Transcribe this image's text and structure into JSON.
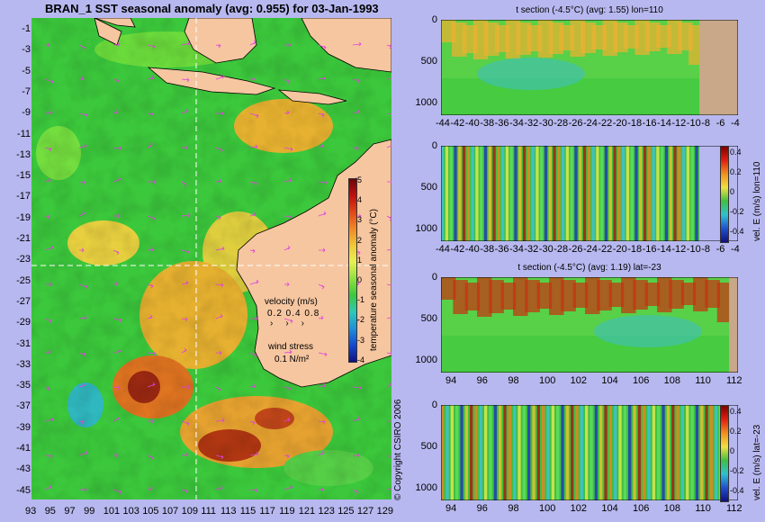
{
  "map": {
    "title": "BRAN_1 SST seasonal anomaly (avg: 0.955) for 03-Jan-1993",
    "x_ticks": [
      "93",
      "95",
      "97",
      "99",
      "101",
      "103",
      "105",
      "107",
      "109",
      "111",
      "113",
      "115",
      "117",
      "119",
      "121",
      "123",
      "125",
      "127",
      "129"
    ],
    "y_ticks": [
      "-1",
      "-3",
      "-5",
      "-7",
      "-9",
      "-11",
      "-13",
      "-15",
      "-17",
      "-19",
      "-21",
      "-23",
      "-25",
      "-27",
      "-29",
      "-31",
      "-33",
      "-35",
      "-37",
      "-39",
      "-41",
      "-43",
      "-45"
    ],
    "velocity_label": "velocity (m/s)",
    "velocity_scale": "0.2 0.4 0.8",
    "wind_label": "wind stress",
    "wind_scale": "0.1 N/m²",
    "colorbar_ticks": [
      "5",
      "4",
      "3",
      "2",
      "1",
      "0",
      "-1",
      "-2",
      "-3",
      "-4"
    ],
    "colorbar_label": "temperature seasonal anomaly (°C)",
    "copyright": "© Copyright CSIRO 2006",
    "section_lon": 110,
    "section_lat": -23
  },
  "panels": [
    {
      "title": "t section (-4.5°C) (avg: 1.55) lon=110",
      "x_ticks": [
        "-44",
        "-42",
        "-40",
        "-38",
        "-36",
        "-34",
        "-32",
        "-30",
        "-28",
        "-26",
        "-24",
        "-22",
        "-20",
        "-18",
        "-16",
        "-14",
        "-12",
        "-10",
        "-8",
        "-6",
        "-4"
      ],
      "y_ticks": [
        "0",
        "500",
        "1000"
      ],
      "has_colorbar": false
    },
    {
      "title": "",
      "x_ticks": [
        "-44",
        "-42",
        "-40",
        "-38",
        "-36",
        "-34",
        "-32",
        "-30",
        "-28",
        "-26",
        "-24",
        "-22",
        "-20",
        "-18",
        "-16",
        "-14",
        "-12",
        "-10",
        "-8",
        "-6",
        "-4"
      ],
      "y_ticks": [
        "0",
        "500",
        "1000"
      ],
      "has_colorbar": true,
      "colorbar_ticks": [
        "0.4",
        "0.2",
        "0",
        "-0.2",
        "-0.4"
      ],
      "colorbar_label": "vel. E (m/s) lon=110"
    },
    {
      "title": "t section (-4.5°C) (avg: 1.19) lat=-23",
      "x_ticks": [
        "94",
        "96",
        "98",
        "100",
        "102",
        "104",
        "106",
        "108",
        "110",
        "112"
      ],
      "y_ticks": [
        "0",
        "500",
        "1000"
      ],
      "has_colorbar": false
    },
    {
      "title": "",
      "x_ticks": [
        "94",
        "96",
        "98",
        "100",
        "102",
        "104",
        "106",
        "108",
        "110",
        "112"
      ],
      "y_ticks": [
        "0",
        "500",
        "1000"
      ],
      "has_colorbar": true,
      "colorbar_ticks": [
        "0.4",
        "0.2",
        "0",
        "-0.2",
        "-0.4"
      ],
      "colorbar_label": "vel. E (m/s) lat=-23"
    }
  ],
  "colors": {
    "background": "#b8b8f0",
    "land": "#f6c6a0",
    "seafloor": "#c8a888",
    "ocean_green": "#3cc83c",
    "warm": "#f0a030",
    "hot": "#a02010",
    "cool": "#30b8c8",
    "vector": "#e040e0"
  }
}
